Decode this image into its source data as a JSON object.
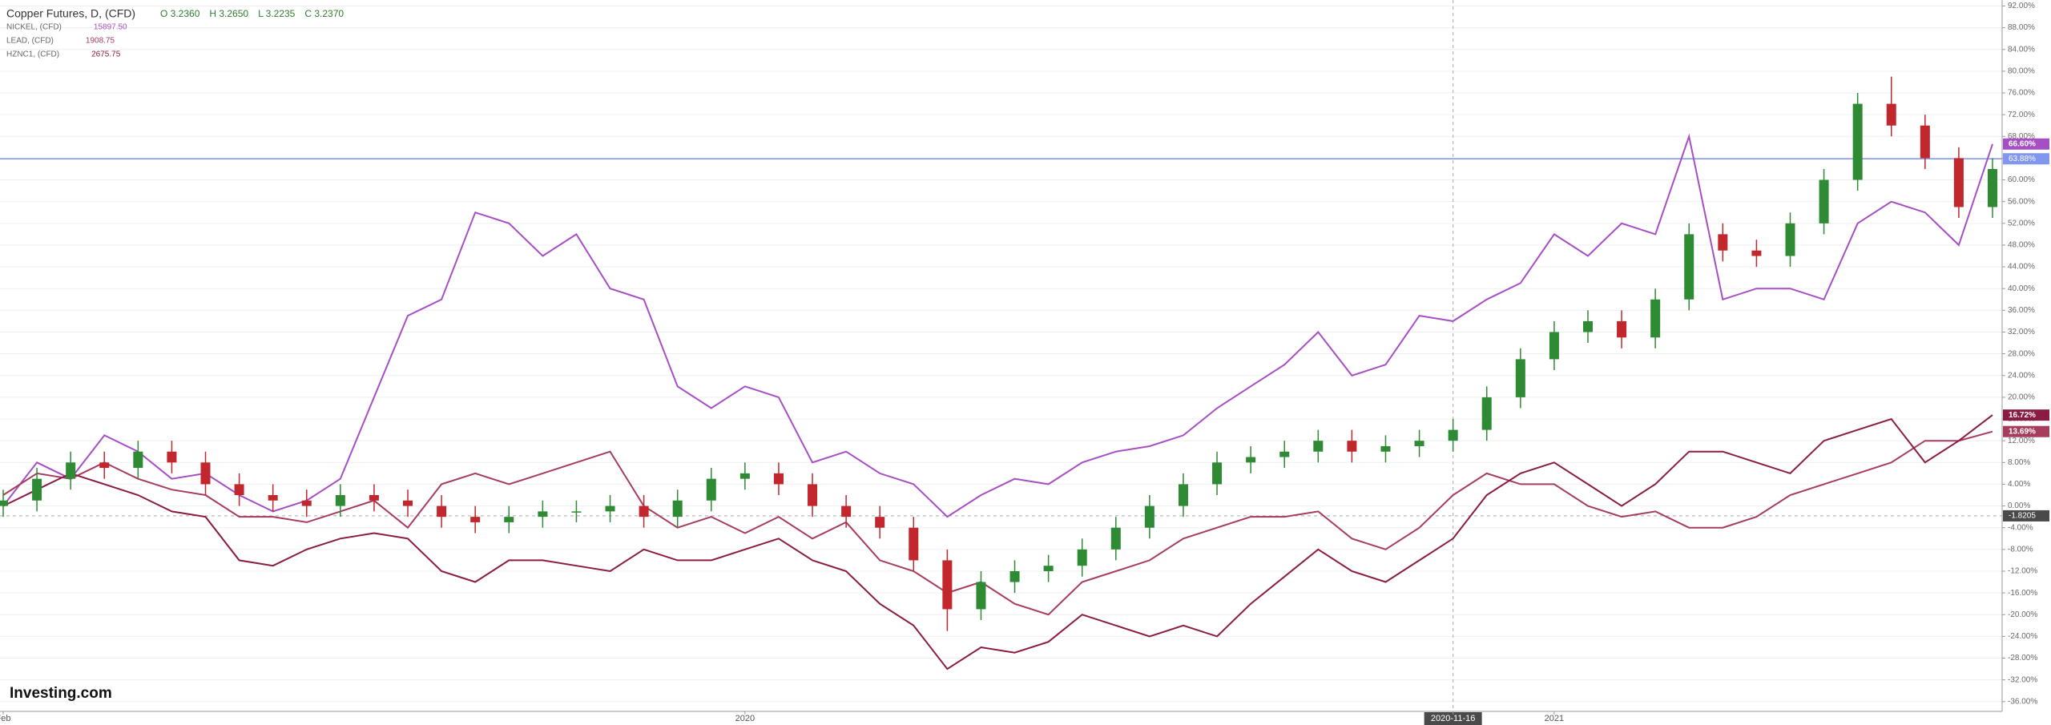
{
  "chart_data": {
    "type": "candlestick",
    "title": "Copper Futures, D, (CFD)",
    "ohlc_readout": [
      "O 3.2360",
      "H 3.2650",
      "L 3.2235",
      "C 3.2370"
    ],
    "watermark": "Investing.com",
    "categories": [
      "Feb",
      null,
      null,
      null,
      null,
      null,
      null,
      null,
      null,
      null,
      null,
      null,
      null,
      null,
      null,
      null,
      null,
      null,
      null,
      null,
      null,
      null,
      "2020",
      null,
      null,
      null,
      null,
      null,
      null,
      null,
      null,
      null,
      null,
      null,
      null,
      null,
      null,
      null,
      null,
      null,
      null,
      null,
      null,
      "2020-11-16",
      null,
      null,
      "2021",
      null,
      null,
      null,
      null,
      null,
      null,
      null,
      null,
      null,
      null,
      null,
      null,
      null
    ],
    "crosshair": {
      "category_index": 43,
      "y": -1.8205
    },
    "candles": {
      "up_color": "#2e8b34",
      "down_color": "#c1272d",
      "open": [
        0,
        1,
        5,
        8,
        7,
        10,
        8,
        4,
        2,
        1,
        0,
        2,
        1,
        0,
        -2,
        -3,
        -2,
        -1,
        -1,
        0,
        -2,
        1,
        5,
        6,
        4,
        0,
        -2,
        -4,
        -10,
        -19,
        -14,
        -12,
        -11,
        -8,
        -4,
        0,
        4,
        8,
        9,
        10,
        12,
        10,
        11,
        12,
        14,
        20,
        27,
        32,
        34,
        31,
        38,
        50,
        47,
        46,
        52,
        60,
        74,
        70,
        64,
        55
      ],
      "high": [
        3,
        7,
        10,
        10,
        12,
        12,
        10,
        6,
        4,
        3,
        4,
        4,
        3,
        2,
        0,
        0,
        1,
        1,
        2,
        2,
        3,
        7,
        8,
        8,
        6,
        2,
        0,
        -2,
        -8,
        -12,
        -10,
        -9,
        -6,
        -2,
        2,
        6,
        10,
        11,
        12,
        14,
        14,
        13,
        14,
        16,
        22,
        29,
        34,
        36,
        36,
        40,
        52,
        52,
        49,
        54,
        62,
        76,
        79,
        72,
        66,
        64
      ],
      "low": [
        -2,
        -1,
        3,
        5,
        5,
        6,
        2,
        0,
        -1,
        -2,
        -2,
        -1,
        -2,
        -4,
        -5,
        -5,
        -4,
        -3,
        -3,
        -4,
        -4,
        -1,
        3,
        2,
        -2,
        -4,
        -6,
        -12,
        -23,
        -21,
        -16,
        -14,
        -13,
        -10,
        -6,
        -2,
        2,
        6,
        7,
        8,
        8,
        8,
        9,
        10,
        12,
        18,
        25,
        30,
        29,
        29,
        36,
        45,
        44,
        44,
        50,
        58,
        68,
        62,
        53,
        53
      ],
      "close": [
        1,
        5,
        8,
        7,
        10,
        8,
        4,
        2,
        1,
        0,
        2,
        1,
        0,
        -2,
        -3,
        -2,
        -1,
        -1,
        0,
        -2,
        1,
        5,
        6,
        4,
        0,
        -2,
        -4,
        -10,
        -19,
        -14,
        -12,
        -11,
        -8,
        -4,
        0,
        4,
        8,
        9,
        10,
        12,
        10,
        11,
        12,
        14,
        20,
        27,
        32,
        34,
        31,
        38,
        50,
        47,
        46,
        52,
        60,
        74,
        70,
        64,
        55,
        62
      ]
    },
    "series": [
      {
        "name": "NICKEL, (CFD)",
        "legend_value": "15897.50",
        "color": "#a64fc4",
        "last_value_label": "66.60%",
        "values": [
          0,
          8,
          5,
          13,
          10,
          5,
          6,
          2,
          -1,
          1,
          5,
          20,
          35,
          38,
          54,
          52,
          46,
          50,
          40,
          38,
          22,
          18,
          22,
          20,
          8,
          10,
          6,
          4,
          -2,
          2,
          5,
          4,
          8,
          10,
          11,
          13,
          18,
          22,
          26,
          32,
          24,
          26,
          35,
          34,
          38,
          41,
          50,
          46,
          52,
          50,
          68,
          38,
          40,
          40,
          38,
          52,
          56,
          54,
          48,
          66.6
        ]
      },
      {
        "name": "LEAD, (CFD)",
        "legend_value": "1908.75",
        "color": "#a63d5c",
        "last_value_label": "13.69%",
        "values": [
          2,
          6,
          5,
          8,
          5,
          3,
          2,
          -2,
          -2,
          -3,
          -1,
          1,
          -4,
          4,
          6,
          4,
          6,
          8,
          10,
          0,
          -4,
          -2,
          -5,
          -2,
          -6,
          -3,
          -10,
          -12,
          -16,
          -14,
          -18,
          -20,
          -14,
          -12,
          -10,
          -6,
          -4,
          -2,
          -2,
          -1,
          -6,
          -8,
          -4,
          2,
          6,
          4,
          4,
          0,
          -2,
          -1,
          -4,
          -4,
          -2,
          2,
          4,
          6,
          8,
          12,
          12,
          13.69
        ]
      },
      {
        "name": "HZNC1, (CFD)",
        "legend_value": "2675.75",
        "color": "#8a1c44",
        "last_value_label": "16.72%",
        "values": [
          0,
          3,
          6,
          4,
          2,
          -1,
          -2,
          -10,
          -11,
          -8,
          -6,
          -5,
          -6,
          -12,
          -14,
          -10,
          -10,
          -11,
          -12,
          -8,
          -10,
          -10,
          -8,
          -6,
          -10,
          -12,
          -18,
          -22,
          -30,
          -26,
          -27,
          -25,
          -20,
          -22,
          -24,
          -22,
          -24,
          -18,
          -13,
          -8,
          -12,
          -14,
          -10,
          -6,
          2,
          6,
          8,
          4,
          0,
          4,
          10,
          10,
          8,
          6,
          12,
          14,
          16,
          8,
          12,
          16.72
        ]
      }
    ],
    "horizontal_line": {
      "value": 63.88,
      "label": "63.88%",
      "color": "#8196ee"
    },
    "ylim": [
      -37.8,
      93.1
    ],
    "yticks": [
      {
        "value": -36,
        "label": "-36.00%"
      },
      {
        "value": -32,
        "label": "-32.00%"
      },
      {
        "value": -28,
        "label": "-28.00%"
      },
      {
        "value": -24,
        "label": "-24.00%"
      },
      {
        "value": -20,
        "label": "-20.00%"
      },
      {
        "value": -16,
        "label": "-16.00%"
      },
      {
        "value": -12,
        "label": "-12.00%"
      },
      {
        "value": -8,
        "label": "-8.00%"
      },
      {
        "value": -4,
        "label": "-4.00%"
      },
      {
        "value": 0,
        "label": "0.00%"
      },
      {
        "value": 4,
        "label": "4.00%"
      },
      {
        "value": 8,
        "label": "8.00%"
      },
      {
        "value": 12,
        "label": "12.00%"
      },
      {
        "value": 16,
        "label": "16.00%"
      },
      {
        "value": 20,
        "label": "20.00%"
      },
      {
        "value": 24,
        "label": "24.00%"
      },
      {
        "value": 28,
        "label": "28.00%"
      },
      {
        "value": 32,
        "label": "32.00%"
      },
      {
        "value": 36,
        "label": "36.00%"
      },
      {
        "value": 40,
        "label": "40.00%"
      },
      {
        "value": 44,
        "label": "44.00%"
      },
      {
        "value": 48,
        "label": "48.00%"
      },
      {
        "value": 52,
        "label": "52.00%"
      },
      {
        "value": 56,
        "label": "56.00%"
      },
      {
        "value": 60,
        "label": "60.00%"
      },
      {
        "value": 64,
        "label": "64.00%"
      },
      {
        "value": 68,
        "label": "68.00%"
      },
      {
        "value": 72,
        "label": "72.00%"
      },
      {
        "value": 76,
        "label": "76.00%"
      },
      {
        "value": 80,
        "label": "80.00%"
      },
      {
        "value": 84,
        "label": "84.00%"
      },
      {
        "value": 88,
        "label": "88.00%"
      },
      {
        "value": 92,
        "label": "92.00%"
      }
    ],
    "grid": true
  }
}
